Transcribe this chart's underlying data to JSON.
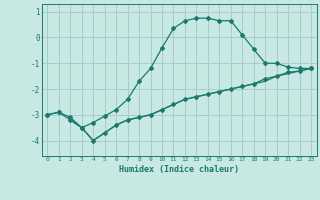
{
  "title": "",
  "xlabel": "Humidex (Indice chaleur)",
  "bg_color": "#c8e8e4",
  "grid_color": "#a8cccc",
  "line_color": "#1a7a6e",
  "xlim": [
    -0.5,
    23.5
  ],
  "ylim": [
    -4.6,
    1.3
  ],
  "yticks": [
    1,
    0,
    -1,
    -2,
    -3,
    -4
  ],
  "xticks": [
    0,
    1,
    2,
    3,
    4,
    5,
    6,
    7,
    8,
    9,
    10,
    11,
    12,
    13,
    14,
    15,
    16,
    17,
    18,
    19,
    20,
    21,
    22,
    23
  ],
  "series1_x": [
    0,
    1,
    2,
    3,
    4,
    5,
    6,
    7,
    8,
    9,
    10,
    11,
    12,
    13,
    14,
    15,
    16,
    17,
    18,
    19,
    20,
    21,
    22,
    23
  ],
  "series1_y": [
    -3.0,
    -2.9,
    -3.1,
    -3.5,
    -3.3,
    -3.05,
    -2.8,
    -2.4,
    -1.7,
    -1.2,
    -0.4,
    0.35,
    0.65,
    0.75,
    0.75,
    0.65,
    0.65,
    0.1,
    -0.45,
    -1.0,
    -1.0,
    -1.15,
    -1.2,
    -1.2
  ],
  "series2_x": [
    0,
    1,
    2,
    3,
    4,
    5,
    6,
    7,
    8,
    9,
    10,
    11,
    12,
    13,
    14,
    15,
    16,
    17,
    18,
    19,
    20,
    21,
    22,
    23
  ],
  "series2_y": [
    -3.0,
    -2.9,
    -3.2,
    -3.5,
    -4.0,
    -3.7,
    -3.4,
    -3.2,
    -3.1,
    -3.0,
    -2.8,
    -2.6,
    -2.4,
    -2.3,
    -2.2,
    -2.1,
    -2.0,
    -1.9,
    -1.8,
    -1.6,
    -1.5,
    -1.35,
    -1.3,
    -1.2
  ],
  "series3_x": [
    2,
    3,
    4,
    5,
    6,
    7,
    8,
    9,
    10,
    11,
    12,
    13,
    14,
    15,
    16,
    17,
    18,
    19,
    20,
    21,
    22,
    23
  ],
  "series3_y": [
    -3.2,
    -3.5,
    -4.0,
    -3.7,
    -3.4,
    -3.2,
    -3.1,
    -3.0,
    -2.8,
    -2.6,
    -2.4,
    -2.3,
    -2.2,
    -2.1,
    -2.0,
    -1.9,
    -1.8,
    -1.7,
    -1.5,
    -1.4,
    -1.3,
    -1.2
  ]
}
